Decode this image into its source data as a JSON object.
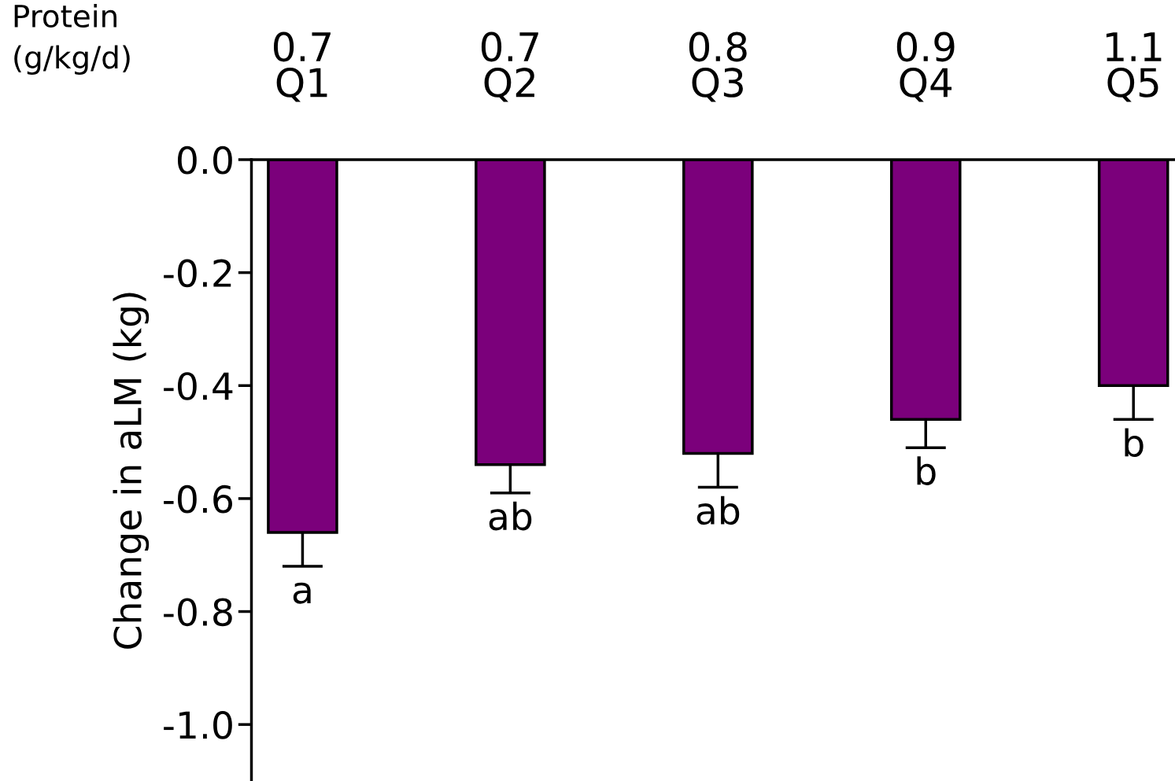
{
  "chart_data": {
    "type": "bar",
    "categories": [
      "Q1",
      "Q2",
      "Q3",
      "Q4",
      "Q5"
    ],
    "values": [
      -0.66,
      -0.54,
      -0.52,
      -0.46,
      -0.4
    ],
    "errors": [
      [
        -0.72,
        -0.66
      ],
      [
        -0.59,
        -0.54
      ],
      [
        -0.58,
        -0.52
      ],
      [
        -0.51,
        -0.46
      ],
      [
        -0.46,
        -0.4
      ]
    ],
    "color": "#7b007b",
    "ylabel": "Change in aLM (kg)",
    "ylim": [
      -1.1,
      0
    ],
    "yticks": [
      {
        "value": 0,
        "label": "0.0"
      },
      {
        "value": -0.2,
        "label": "-0.2"
      },
      {
        "value": -0.4,
        "label": "-0.4"
      },
      {
        "value": -0.6,
        "label": "-0.6"
      },
      {
        "value": -0.8,
        "label": "-0.8"
      },
      {
        "value": -1.0,
        "label": "-1.0"
      }
    ],
    "grid": false,
    "annotations": [
      "Protein\n(g/kg/d)",
      "0.7",
      "0.7",
      "0.8",
      "0.9",
      "1.1",
      "a",
      "ab",
      "ab",
      "b",
      "b"
    ]
  }
}
